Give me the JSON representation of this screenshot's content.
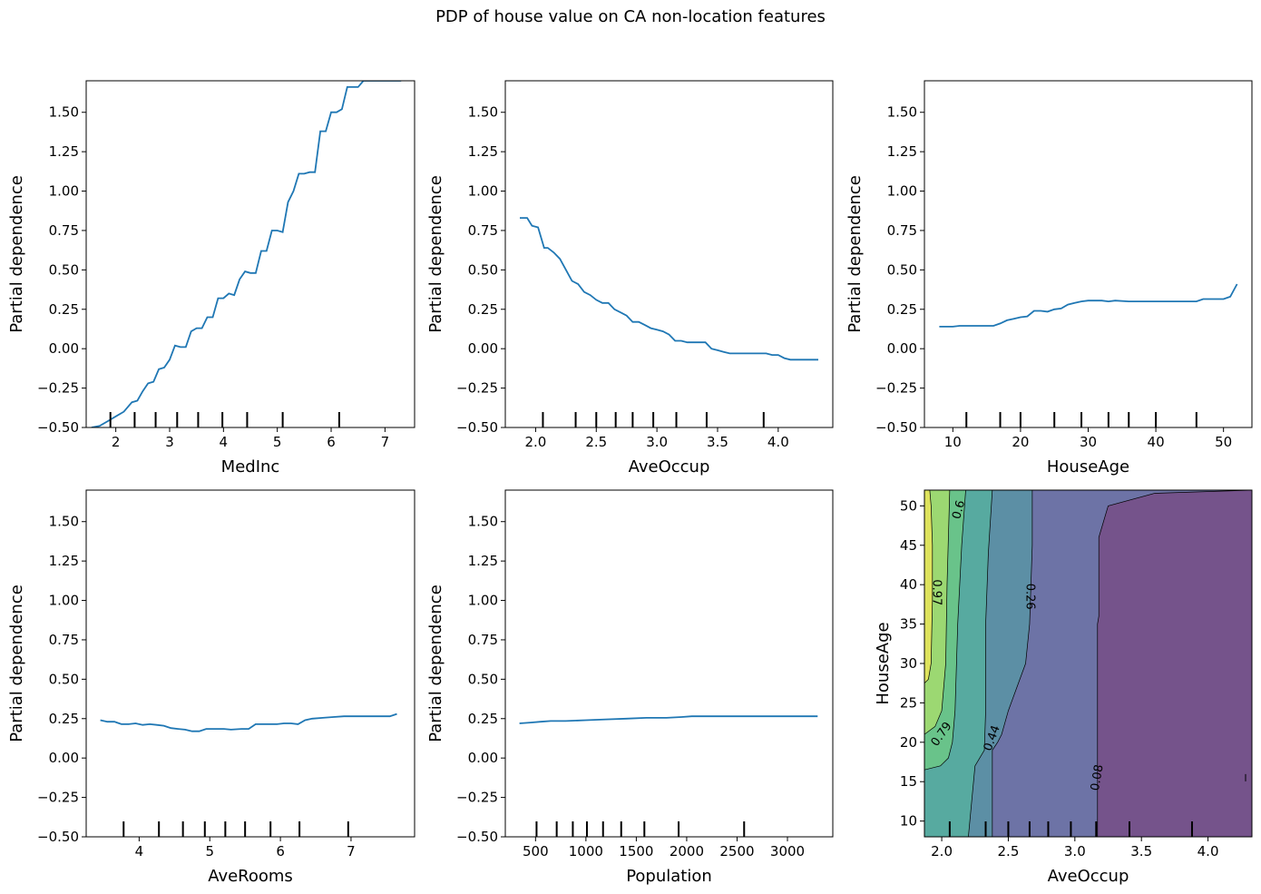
{
  "figure": {
    "title": "PDP of house value on CA non-location features"
  },
  "chart_data": [
    {
      "type": "line",
      "xlabel": "MedInc",
      "ylabel": "Partial dependence",
      "xlim": [
        1.45,
        7.55
      ],
      "ylim": [
        -0.5,
        1.7
      ],
      "xticks": [
        2,
        3,
        4,
        5,
        6,
        7
      ],
      "yticks": [
        -0.5,
        -0.25,
        0.0,
        0.25,
        0.5,
        0.75,
        1.0,
        1.25,
        1.5
      ],
      "deciles": [
        1.9,
        2.35,
        2.74,
        3.14,
        3.53,
        3.98,
        4.44,
        5.1,
        6.15
      ],
      "series": [
        {
          "color": "#1f77b4",
          "x": [
            1.55,
            1.7,
            1.85,
            2.0,
            2.15,
            2.3,
            2.4,
            2.5,
            2.6,
            2.7,
            2.8,
            2.9,
            3.0,
            3.1,
            3.2,
            3.3,
            3.4,
            3.5,
            3.6,
            3.7,
            3.8,
            3.9,
            4.0,
            4.1,
            4.2,
            4.3,
            4.4,
            4.5,
            4.6,
            4.7,
            4.8,
            4.9,
            5.0,
            5.1,
            5.2,
            5.3,
            5.4,
            5.5,
            5.6,
            5.7,
            5.8,
            5.9,
            6.0,
            6.1,
            6.2,
            6.3,
            6.4,
            6.5,
            6.6,
            6.7,
            6.8,
            6.9,
            7.0,
            7.1,
            7.2,
            7.3
          ],
          "y": [
            -0.5,
            -0.49,
            -0.46,
            -0.43,
            -0.4,
            -0.34,
            -0.33,
            -0.27,
            -0.22,
            -0.21,
            -0.13,
            -0.12,
            -0.07,
            0.02,
            0.01,
            0.01,
            0.11,
            0.13,
            0.13,
            0.2,
            0.2,
            0.32,
            0.32,
            0.35,
            0.34,
            0.44,
            0.49,
            0.48,
            0.48,
            0.62,
            0.62,
            0.75,
            0.75,
            0.74,
            0.93,
            1.0,
            1.11,
            1.11,
            1.12,
            1.12,
            1.38,
            1.38,
            1.5,
            1.5,
            1.52,
            1.66,
            1.66,
            1.66,
            1.7,
            1.7,
            1.7,
            1.7,
            1.7,
            1.7,
            1.7,
            1.7
          ]
        }
      ]
    },
    {
      "type": "line",
      "xlabel": "AveOccup",
      "ylabel": "Partial dependence",
      "xlim": [
        1.75,
        4.45
      ],
      "ylim": [
        -0.5,
        1.7
      ],
      "xticks": [
        2.0,
        2.5,
        3.0,
        3.5,
        4.0
      ],
      "yticks": [
        -0.5,
        -0.25,
        0.0,
        0.25,
        0.5,
        0.75,
        1.0,
        1.25,
        1.5
      ],
      "deciles": [
        2.06,
        2.33,
        2.5,
        2.66,
        2.8,
        2.97,
        3.16,
        3.41,
        3.88
      ],
      "series": [
        {
          "color": "#1f77b4",
          "x": [
            1.87,
            1.93,
            1.97,
            2.02,
            2.07,
            2.1,
            2.15,
            2.2,
            2.25,
            2.3,
            2.35,
            2.4,
            2.45,
            2.5,
            2.55,
            2.6,
            2.65,
            2.7,
            2.75,
            2.8,
            2.85,
            2.9,
            2.95,
            3.0,
            3.05,
            3.1,
            3.15,
            3.2,
            3.25,
            3.3,
            3.35,
            3.4,
            3.45,
            3.5,
            3.55,
            3.6,
            3.65,
            3.7,
            3.75,
            3.8,
            3.85,
            3.9,
            3.95,
            4.0,
            4.05,
            4.1,
            4.2,
            4.3,
            4.33
          ],
          "y": [
            0.83,
            0.83,
            0.78,
            0.77,
            0.64,
            0.64,
            0.61,
            0.57,
            0.5,
            0.43,
            0.41,
            0.36,
            0.34,
            0.31,
            0.29,
            0.29,
            0.25,
            0.23,
            0.21,
            0.17,
            0.17,
            0.15,
            0.13,
            0.12,
            0.11,
            0.09,
            0.05,
            0.05,
            0.04,
            0.04,
            0.04,
            0.04,
            0.0,
            -0.01,
            -0.02,
            -0.03,
            -0.03,
            -0.03,
            -0.03,
            -0.03,
            -0.03,
            -0.03,
            -0.04,
            -0.04,
            -0.06,
            -0.07,
            -0.07,
            -0.07,
            -0.07
          ]
        }
      ]
    },
    {
      "type": "line",
      "xlabel": "HouseAge",
      "ylabel": "Partial dependence",
      "xlim": [
        5.8,
        54.2
      ],
      "ylim": [
        -0.5,
        1.7
      ],
      "xticks": [
        10,
        20,
        30,
        40,
        50
      ],
      "yticks": [
        -0.5,
        -0.25,
        0.0,
        0.25,
        0.5,
        0.75,
        1.0,
        1.25,
        1.5
      ],
      "deciles": [
        12,
        17,
        20,
        25,
        29,
        33,
        36,
        40,
        46
      ],
      "series": [
        {
          "color": "#1f77b4",
          "x": [
            8,
            10,
            11,
            12,
            14,
            16,
            17,
            18,
            19,
            20,
            21,
            22,
            23,
            24,
            25,
            26,
            27,
            28,
            29,
            30,
            32,
            33,
            34,
            36,
            38,
            40,
            42,
            44,
            46,
            47,
            48,
            50,
            51,
            52
          ],
          "y": [
            0.14,
            0.14,
            0.145,
            0.145,
            0.145,
            0.145,
            0.16,
            0.18,
            0.19,
            0.2,
            0.205,
            0.24,
            0.24,
            0.235,
            0.25,
            0.255,
            0.28,
            0.29,
            0.3,
            0.305,
            0.305,
            0.3,
            0.305,
            0.3,
            0.3,
            0.3,
            0.3,
            0.3,
            0.3,
            0.315,
            0.315,
            0.315,
            0.33,
            0.41
          ]
        }
      ]
    },
    {
      "type": "line",
      "xlabel": "AveRooms",
      "ylabel": "Partial dependence",
      "xlim": [
        3.25,
        7.9
      ],
      "ylim": [
        -0.5,
        1.7
      ],
      "xticks": [
        4,
        5,
        6,
        7
      ],
      "yticks": [
        -0.5,
        -0.25,
        0.0,
        0.25,
        0.5,
        0.75,
        1.0,
        1.25,
        1.5
      ],
      "deciles": [
        3.78,
        4.28,
        4.62,
        4.93,
        5.22,
        5.5,
        5.86,
        6.27,
        6.96
      ],
      "series": [
        {
          "color": "#1f77b4",
          "x": [
            3.45,
            3.55,
            3.65,
            3.75,
            3.85,
            3.95,
            4.05,
            4.15,
            4.25,
            4.35,
            4.45,
            4.55,
            4.65,
            4.75,
            4.85,
            4.95,
            5.1,
            5.2,
            5.3,
            5.45,
            5.55,
            5.65,
            5.8,
            5.95,
            6.05,
            6.15,
            6.25,
            6.35,
            6.45,
            6.6,
            6.75,
            6.9,
            7.0,
            7.2,
            7.4,
            7.55,
            7.65
          ],
          "y": [
            0.24,
            0.23,
            0.23,
            0.215,
            0.215,
            0.22,
            0.21,
            0.215,
            0.21,
            0.205,
            0.19,
            0.185,
            0.18,
            0.17,
            0.17,
            0.185,
            0.185,
            0.185,
            0.18,
            0.185,
            0.185,
            0.215,
            0.215,
            0.215,
            0.22,
            0.22,
            0.215,
            0.24,
            0.25,
            0.255,
            0.26,
            0.265,
            0.265,
            0.265,
            0.265,
            0.265,
            0.28
          ]
        }
      ]
    },
    {
      "type": "line",
      "xlabel": "Population",
      "ylabel": "Partial dependence",
      "xlim": [
        200,
        3450
      ],
      "ylim": [
        -0.5,
        1.7
      ],
      "xticks": [
        500,
        1000,
        1500,
        2000,
        2500,
        3000
      ],
      "yticks": [
        -0.5,
        -0.25,
        0.0,
        0.25,
        0.5,
        0.75,
        1.0,
        1.25,
        1.5
      ],
      "deciles": [
        510,
        710,
        870,
        1010,
        1170,
        1350,
        1580,
        1920,
        2570
      ],
      "series": [
        {
          "color": "#1f77b4",
          "x": [
            340,
            450,
            550,
            650,
            800,
            1000,
            1200,
            1400,
            1600,
            1800,
            1950,
            2050,
            2300,
            2600,
            2900,
            3100,
            3300
          ],
          "y": [
            0.22,
            0.225,
            0.23,
            0.235,
            0.235,
            0.24,
            0.245,
            0.25,
            0.255,
            0.255,
            0.26,
            0.265,
            0.265,
            0.265,
            0.265,
            0.265,
            0.265
          ]
        }
      ]
    },
    {
      "type": "heatmap",
      "xlabel": "AveOccup",
      "ylabel": "HouseAge",
      "xlim": [
        1.87,
        4.33
      ],
      "ylim": [
        8,
        52
      ],
      "xticks": [
        2.0,
        2.5,
        3.0,
        3.5,
        4.0
      ],
      "yticks": [
        10,
        15,
        20,
        25,
        30,
        35,
        40,
        45,
        50
      ],
      "deciles_x": [
        2.06,
        2.33,
        2.5,
        2.66,
        2.8,
        2.97,
        3.16,
        3.41,
        3.88
      ],
      "contour_levels": [
        0.08,
        0.26,
        0.44,
        0.61,
        0.79,
        0.97
      ],
      "contour_labels": [
        "0.97",
        "0.79",
        "0.6",
        "0.44",
        "0.26",
        "0.08"
      ],
      "level_colors": [
        "#75538b",
        "#6d73a6",
        "#5c8fa5",
        "#57aaa0",
        "#69c38a",
        "#9cd872",
        "#dee35d"
      ]
    }
  ]
}
